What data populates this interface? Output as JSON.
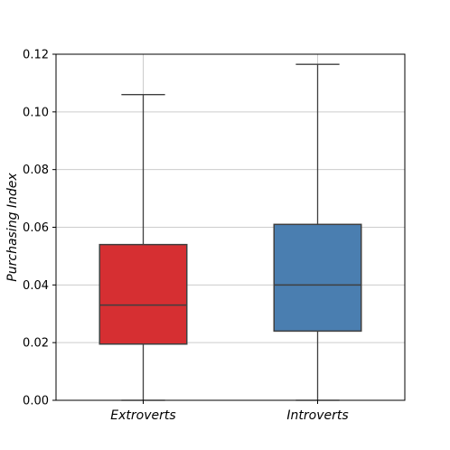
{
  "chart_data": {
    "type": "box",
    "title": "",
    "xlabel": "",
    "ylabel": "Purchasing Index",
    "ylim": [
      0.0,
      0.12
    ],
    "yticks": [
      0.0,
      0.02,
      0.04,
      0.06,
      0.08,
      0.1,
      0.12
    ],
    "ytick_labels": [
      "0.00",
      "0.02",
      "0.04",
      "0.06",
      "0.08",
      "0.10",
      "0.12"
    ],
    "grid": true,
    "categories": [
      "Extroverts",
      "Introverts"
    ],
    "boxes": [
      {
        "category": "Extroverts",
        "min": 0.0,
        "q1": 0.0195,
        "median": 0.033,
        "q3": 0.054,
        "max": 0.106,
        "color": "#d62f32"
      },
      {
        "category": "Introverts",
        "min": 0.0,
        "q1": 0.024,
        "median": 0.04,
        "q3": 0.061,
        "max": 0.1165,
        "color": "#4a7eb0"
      }
    ]
  }
}
